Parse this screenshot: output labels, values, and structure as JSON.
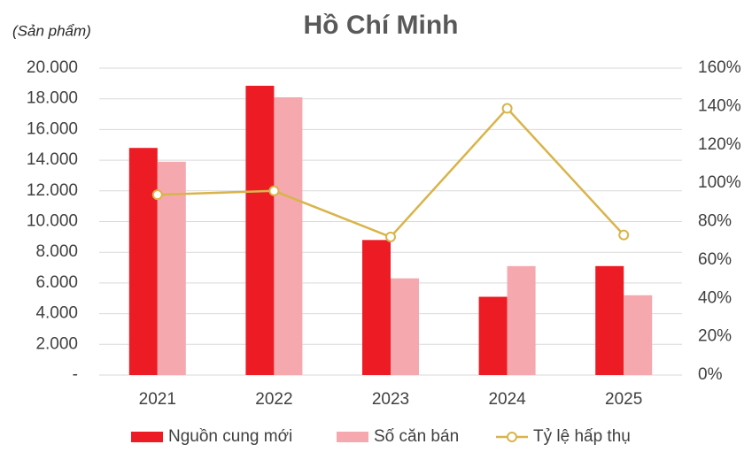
{
  "chart_data": {
    "type": "bar",
    "title": "Hồ Chí Minh",
    "y_label": "(Sản phẩm)",
    "categories": [
      "2021",
      "2022",
      "2023",
      "2024",
      "2025"
    ],
    "series": [
      {
        "name": "Nguồn cung mới",
        "color": "#ed1c24",
        "values": [
          14800,
          18850,
          8800,
          5100,
          7100
        ]
      },
      {
        "name": "Số căn bán",
        "color": "#f5a9ae",
        "values": [
          13900,
          18100,
          6300,
          7100,
          5200
        ]
      },
      {
        "name": "Tỷ lệ hấp thụ",
        "color": "#d9b44a",
        "type": "line",
        "axis": "y2",
        "values": [
          94,
          96,
          72,
          139,
          73
        ]
      }
    ],
    "ylim": [
      0,
      20000
    ],
    "yticks": [
      {
        "value": 0,
        "label": "-"
      },
      {
        "value": 2000,
        "label": "2.000"
      },
      {
        "value": 4000,
        "label": "4.000"
      },
      {
        "value": 6000,
        "label": "6.000"
      },
      {
        "value": 8000,
        "label": "8.000"
      },
      {
        "value": 10000,
        "label": "10.000"
      },
      {
        "value": 12000,
        "label": "12.000"
      },
      {
        "value": 14000,
        "label": "14.000"
      },
      {
        "value": 16000,
        "label": "16.000"
      },
      {
        "value": 18000,
        "label": "18.000"
      },
      {
        "value": 20000,
        "label": "20.000"
      }
    ],
    "y2lim": [
      0,
      160
    ],
    "y2ticks": [
      {
        "value": 0,
        "label": "0%"
      },
      {
        "value": 20,
        "label": "20%"
      },
      {
        "value": 40,
        "label": "40%"
      },
      {
        "value": 60,
        "label": "60%"
      },
      {
        "value": 80,
        "label": "80%"
      },
      {
        "value": 100,
        "label": "100%"
      },
      {
        "value": 120,
        "label": "120%"
      },
      {
        "value": 140,
        "label": "140%"
      },
      {
        "value": 160,
        "label": "160%"
      }
    ],
    "grid": true,
    "legend": "bottom"
  }
}
